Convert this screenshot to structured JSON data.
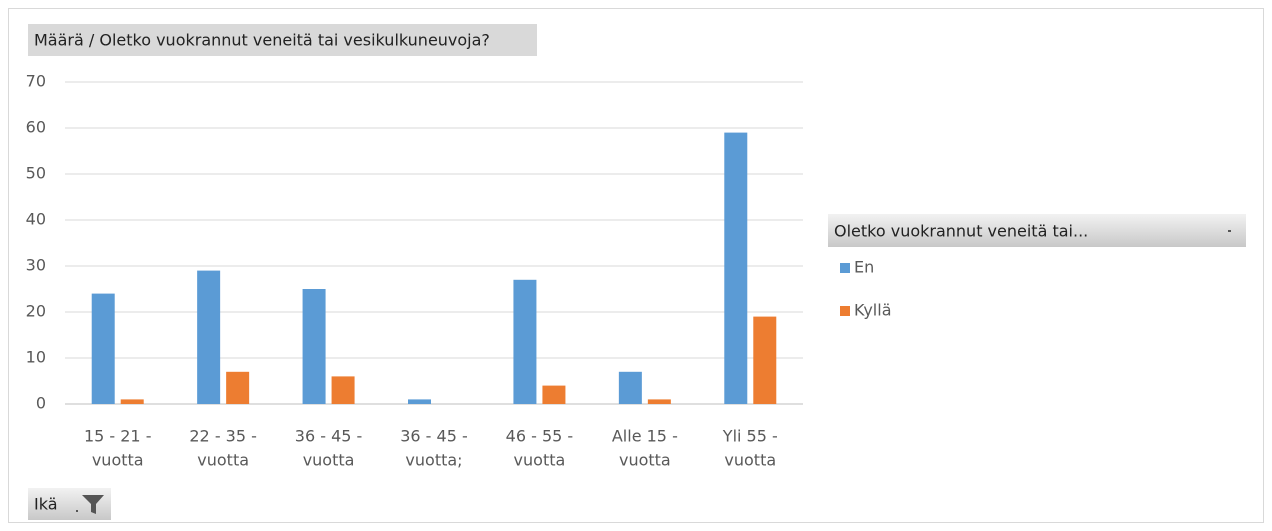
{
  "chart_data": {
    "type": "bar",
    "title": "Määrä  / Oletko vuokrannut veneitä tai vesikulkuneuvoja?",
    "legend_title": "Oletko vuokrannut veneitä tai...",
    "field_button": "Ikä",
    "categories": [
      [
        "15 - 21 -",
        "vuotta"
      ],
      [
        "22 - 35 -",
        "vuotta"
      ],
      [
        "36 - 45 -",
        "vuotta"
      ],
      [
        "36 - 45 -",
        "vuotta;"
      ],
      [
        "46 - 55 -",
        "vuotta"
      ],
      [
        "Alle 15 -",
        "vuotta"
      ],
      [
        "Yli 55 -",
        "vuotta"
      ]
    ],
    "series": [
      {
        "name": "En",
        "color": "#5b9bd5",
        "values": [
          24,
          29,
          25,
          1,
          27,
          7,
          59
        ]
      },
      {
        "name": "Kyllä",
        "color": "#ed7d31",
        "values": [
          1,
          7,
          6,
          null,
          4,
          1,
          19
        ]
      }
    ],
    "ylim": [
      0,
      70
    ],
    "yticks": [
      0,
      10,
      20,
      30,
      40,
      50,
      60,
      70
    ],
    "grid": true,
    "legend": "right"
  }
}
